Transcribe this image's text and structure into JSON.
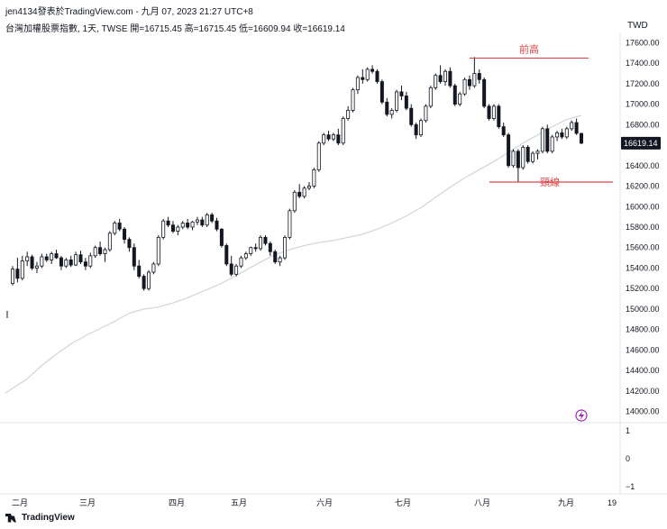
{
  "header": {
    "publisher": "jen4134發表於TradingView.com - 九月 07, 2023 21:27 UTC+8",
    "symbol_line": "台灣加權股票指數, 1天, TWSE  開=16715.45  高=16715.45  低=16609.94  收=16619.14",
    "currency": "TWD"
  },
  "footer": {
    "brand": "TradingView"
  },
  "colors": {
    "up_fill": "#ffffff",
    "down_fill": "#131722",
    "ma_line": "#d1d4dc",
    "annotation": "#e0464a",
    "price_tag": "#131722",
    "bolt": "#9c27b0"
  },
  "icons": [
    "lightning-bolt-icon",
    "tradingview-logo-icon"
  ],
  "chart_data": {
    "type": "candlestick",
    "title": "台灣加權股票指數, 1天, TWSE",
    "ylim": [
      13900,
      17700
    ],
    "y_ticks": [
      17600,
      17400,
      17200,
      17000,
      16800,
      16600,
      16400,
      16200,
      16000,
      15800,
      15600,
      15400,
      15200,
      15000,
      14800,
      14600,
      14400,
      14200,
      14000
    ],
    "y_tick_labels": [
      "17600.00",
      "17400.00",
      "17200.00",
      "17000.00",
      "16800.00",
      "16600.00",
      "16400.00",
      "16200.00",
      "16000.00",
      "15800.00",
      "15600.00",
      "15400.00",
      "15200.00",
      "15000.00",
      "14800.00",
      "14600.00",
      "14400.00",
      "14200.00",
      "14000.00"
    ],
    "last_price": "16619.14",
    "months": [
      "二月",
      "三月",
      "四月",
      "五月",
      "六月",
      "七月",
      "八月",
      "九月",
      "19"
    ],
    "sub_pane_ticks": [
      "1",
      "0",
      "−1"
    ],
    "annotations": [
      {
        "label": "前高",
        "value": 17450
      },
      {
        "label": "頸線",
        "value": 16240
      }
    ],
    "candles": [
      [
        15250,
        15420,
        15230,
        15390
      ],
      [
        15390,
        15500,
        15260,
        15300
      ],
      [
        15300,
        15520,
        15280,
        15470
      ],
      [
        15470,
        15560,
        15420,
        15510
      ],
      [
        15510,
        15530,
        15380,
        15400
      ],
      [
        15400,
        15460,
        15350,
        15420
      ],
      [
        15420,
        15540,
        15400,
        15510
      ],
      [
        15510,
        15540,
        15460,
        15480
      ],
      [
        15480,
        15560,
        15440,
        15540
      ],
      [
        15540,
        15580,
        15490,
        15500
      ],
      [
        15500,
        15520,
        15380,
        15420
      ],
      [
        15420,
        15500,
        15400,
        15480
      ],
      [
        15480,
        15520,
        15410,
        15430
      ],
      [
        15430,
        15560,
        15420,
        15530
      ],
      [
        15530,
        15570,
        15440,
        15460
      ],
      [
        15460,
        15500,
        15380,
        15420
      ],
      [
        15420,
        15550,
        15400,
        15520
      ],
      [
        15520,
        15620,
        15500,
        15600
      ],
      [
        15600,
        15660,
        15520,
        15540
      ],
      [
        15540,
        15600,
        15460,
        15580
      ],
      [
        15580,
        15760,
        15560,
        15740
      ],
      [
        15740,
        15860,
        15720,
        15840
      ],
      [
        15840,
        15880,
        15760,
        15780
      ],
      [
        15780,
        15800,
        15640,
        15680
      ],
      [
        15680,
        15700,
        15560,
        15600
      ],
      [
        15600,
        15640,
        15380,
        15420
      ],
      [
        15420,
        15480,
        15300,
        15320
      ],
      [
        15320,
        15340,
        15180,
        15200
      ],
      [
        15200,
        15380,
        15180,
        15360
      ],
      [
        15360,
        15460,
        15340,
        15440
      ],
      [
        15440,
        15720,
        15420,
        15700
      ],
      [
        15700,
        15880,
        15680,
        15860
      ],
      [
        15860,
        15900,
        15800,
        15820
      ],
      [
        15820,
        15860,
        15740,
        15760
      ],
      [
        15760,
        15820,
        15720,
        15800
      ],
      [
        15800,
        15860,
        15780,
        15840
      ],
      [
        15840,
        15880,
        15780,
        15800
      ],
      [
        15800,
        15860,
        15770,
        15850
      ],
      [
        15850,
        15900,
        15820,
        15870
      ],
      [
        15870,
        15900,
        15800,
        15820
      ],
      [
        15820,
        15940,
        15800,
        15920
      ],
      [
        15920,
        15940,
        15840,
        15860
      ],
      [
        15860,
        15890,
        15760,
        15780
      ],
      [
        15780,
        15790,
        15600,
        15620
      ],
      [
        15620,
        15640,
        15420,
        15440
      ],
      [
        15440,
        15520,
        15320,
        15340
      ],
      [
        15340,
        15440,
        15320,
        15420
      ],
      [
        15420,
        15520,
        15400,
        15500
      ],
      [
        15500,
        15560,
        15480,
        15540
      ],
      [
        15540,
        15610,
        15520,
        15600
      ],
      [
        15600,
        15640,
        15560,
        15590
      ],
      [
        15590,
        15720,
        15570,
        15700
      ],
      [
        15700,
        15720,
        15620,
        15640
      ],
      [
        15640,
        15660,
        15520,
        15560
      ],
      [
        15560,
        15580,
        15440,
        15460
      ],
      [
        15460,
        15520,
        15420,
        15500
      ],
      [
        15500,
        15720,
        15480,
        15700
      ],
      [
        15700,
        15980,
        15680,
        15960
      ],
      [
        15960,
        16160,
        15940,
        16140
      ],
      [
        16140,
        16220,
        16080,
        16100
      ],
      [
        16100,
        16200,
        16080,
        16180
      ],
      [
        16180,
        16240,
        16160,
        16200
      ],
      [
        16200,
        16380,
        16180,
        16360
      ],
      [
        16360,
        16640,
        16340,
        16620
      ],
      [
        16620,
        16720,
        16600,
        16700
      ],
      [
        16700,
        16740,
        16640,
        16660
      ],
      [
        16660,
        16720,
        16640,
        16700
      ],
      [
        16700,
        16760,
        16600,
        16620
      ],
      [
        16620,
        16880,
        16600,
        16860
      ],
      [
        16860,
        16980,
        16840,
        16940
      ],
      [
        16940,
        17160,
        16920,
        17140
      ],
      [
        17140,
        17280,
        17100,
        17260
      ],
      [
        17260,
        17340,
        17200,
        17240
      ],
      [
        17240,
        17360,
        17220,
        17340
      ],
      [
        17340,
        17380,
        17300,
        17320
      ],
      [
        17320,
        17340,
        17200,
        17220
      ],
      [
        17220,
        17240,
        17000,
        17020
      ],
      [
        17020,
        17060,
        16880,
        16900
      ],
      [
        16900,
        16960,
        16860,
        16940
      ],
      [
        16940,
        17140,
        16920,
        17120
      ],
      [
        17120,
        17180,
        17040,
        17080
      ],
      [
        17080,
        17120,
        16940,
        16960
      ],
      [
        16960,
        17000,
        16780,
        16800
      ],
      [
        16800,
        16820,
        16660,
        16700
      ],
      [
        16700,
        16860,
        16680,
        16840
      ],
      [
        16840,
        17000,
        16820,
        16980
      ],
      [
        16980,
        17180,
        16960,
        17160
      ],
      [
        17160,
        17300,
        17140,
        17280
      ],
      [
        17280,
        17380,
        17200,
        17220
      ],
      [
        17220,
        17340,
        17180,
        17320
      ],
      [
        17320,
        17360,
        17160,
        17180
      ],
      [
        17180,
        17200,
        16980,
        17000
      ],
      [
        17000,
        17120,
        16980,
        17100
      ],
      [
        17100,
        17260,
        17080,
        17240
      ],
      [
        17240,
        17280,
        17140,
        17180
      ],
      [
        17180,
        17460,
        17160,
        17300
      ],
      [
        17300,
        17340,
        17200,
        17240
      ],
      [
        17240,
        17260,
        16960,
        16980
      ],
      [
        16980,
        17000,
        16840,
        16860
      ],
      [
        16860,
        17000,
        16840,
        16980
      ],
      [
        16980,
        17000,
        16760,
        16780
      ],
      [
        16780,
        16820,
        16680,
        16700
      ],
      [
        16700,
        16720,
        16380,
        16400
      ],
      [
        16400,
        16560,
        16380,
        16540
      ],
      [
        16540,
        16560,
        16240,
        16380
      ],
      [
        16380,
        16600,
        16360,
        16580
      ],
      [
        16580,
        16600,
        16420,
        16440
      ],
      [
        16440,
        16540,
        16420,
        16520
      ],
      [
        16520,
        16560,
        16460,
        16540
      ],
      [
        16540,
        16780,
        16520,
        16760
      ],
      [
        16760,
        16800,
        16520,
        16540
      ],
      [
        16540,
        16700,
        16520,
        16680
      ],
      [
        16680,
        16740,
        16640,
        16720
      ],
      [
        16720,
        16760,
        16660,
        16680
      ],
      [
        16680,
        16780,
        16660,
        16760
      ],
      [
        16760,
        16840,
        16740,
        16820
      ],
      [
        16820,
        16860,
        16700,
        16715
      ],
      [
        16715,
        16715,
        16610,
        16619
      ]
    ],
    "ma_line": [
      [
        0,
        14180
      ],
      [
        8,
        14320
      ],
      [
        16,
        14450
      ],
      [
        24,
        14560
      ],
      [
        32,
        14660
      ],
      [
        40,
        14740
      ],
      [
        48,
        14810
      ],
      [
        56,
        14880
      ],
      [
        64,
        14960
      ],
      [
        72,
        15000
      ],
      [
        80,
        15020
      ],
      [
        88,
        15060
      ],
      [
        96,
        15110
      ],
      [
        104,
        15170
      ],
      [
        112,
        15230
      ],
      [
        120,
        15300
      ],
      [
        128,
        15380
      ],
      [
        136,
        15460
      ],
      [
        144,
        15530
      ],
      [
        152,
        15580
      ],
      [
        160,
        15620
      ],
      [
        168,
        15650
      ],
      [
        176,
        15670
      ],
      [
        184,
        15700
      ],
      [
        192,
        15730
      ],
      [
        200,
        15780
      ],
      [
        208,
        15840
      ],
      [
        216,
        15910
      ],
      [
        224,
        15990
      ],
      [
        232,
        16090
      ],
      [
        240,
        16190
      ],
      [
        248,
        16280
      ],
      [
        256,
        16360
      ],
      [
        264,
        16440
      ],
      [
        272,
        16530
      ],
      [
        280,
        16620
      ],
      [
        288,
        16700
      ],
      [
        296,
        16780
      ],
      [
        304,
        16850
      ],
      [
        312,
        16890
      ]
    ]
  }
}
